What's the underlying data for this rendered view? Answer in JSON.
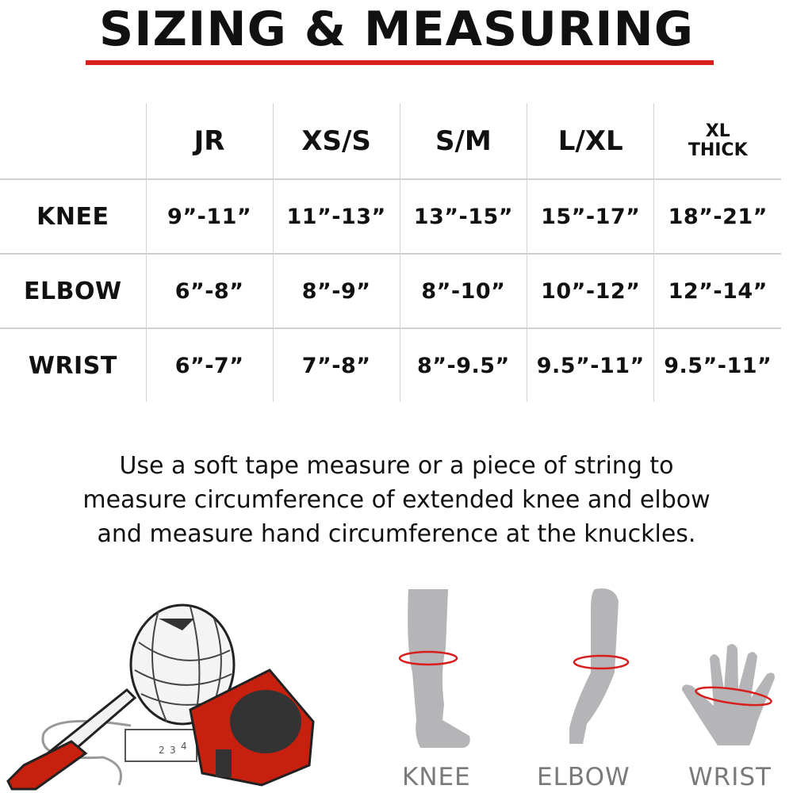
{
  "title": "SIZING & MEASURING",
  "accent_color": "#d91e1e",
  "table": {
    "columns": [
      "JR",
      "XS/S",
      "S/M",
      "L/XL",
      "XL THICK"
    ],
    "xl_thick_line1": "XL",
    "xl_thick_line2": "THICK",
    "rows": [
      {
        "label": "KNEE",
        "values": [
          "9”-11”",
          "11”-13”",
          "13”-15”",
          "15”-17”",
          "18”-21”"
        ]
      },
      {
        "label": "ELBOW",
        "values": [
          "6”-8”",
          "8”-9”",
          "8”-10”",
          "10”-12”",
          "12”-14”"
        ]
      },
      {
        "label": "WRIST",
        "values": [
          "6”-7”",
          "7”-8”",
          "8”-9.5”",
          "9.5”-11”",
          "9.5”-11”"
        ]
      }
    ]
  },
  "instructions": [
    "Use a soft tape measure or a piece of string to",
    "measure circumference of extended knee and elbow",
    "and measure hand circumference at the knuckles."
  ],
  "illustrations": {
    "tools": [
      "string-ball-icon",
      "marker-icon",
      "tape-measure-icon"
    ],
    "tape_numbers": [
      "2",
      "3",
      "4"
    ],
    "body_parts": [
      {
        "icon": "leg-icon",
        "label": "KNEE"
      },
      {
        "icon": "arm-icon",
        "label": "ELBOW"
      },
      {
        "icon": "hand-icon",
        "label": "WRIST"
      }
    ]
  }
}
